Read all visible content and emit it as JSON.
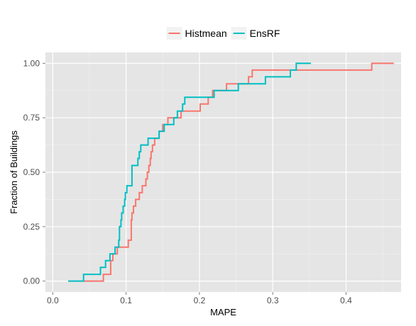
{
  "chart_data": {
    "type": "line",
    "step": true,
    "xlabel": "MAPE",
    "ylabel": "Fraction of Buildings",
    "xlim": [
      -0.01,
      0.475
    ],
    "ylim": [
      -0.05,
      1.05
    ],
    "xticks": [
      0.0,
      0.1,
      0.2,
      0.3,
      0.4
    ],
    "xtick_labels": [
      "0.0",
      "0.1",
      "0.2",
      "0.3",
      "0.4"
    ],
    "yticks": [
      0.0,
      0.25,
      0.5,
      0.75,
      1.0
    ],
    "ytick_labels": [
      "0.00",
      "0.25",
      "0.50",
      "0.75",
      "1.00"
    ],
    "grid": true,
    "legend_position": "top",
    "series": [
      {
        "name": "Histmean",
        "color": "#F8766D",
        "x": [
          0.042,
          0.069,
          0.079,
          0.082,
          0.088,
          0.103,
          0.107,
          0.108,
          0.11,
          0.113,
          0.118,
          0.122,
          0.127,
          0.129,
          0.131,
          0.133,
          0.134,
          0.136,
          0.139,
          0.145,
          0.15,
          0.157,
          0.168,
          0.175,
          0.184,
          0.193,
          0.201,
          0.212,
          0.218,
          0.227,
          0.237,
          0.258,
          0.267,
          0.272,
          0.297,
          0.435,
          0.465
        ],
        "y": [
          0.0,
          0.031,
          0.094,
          0.125,
          0.156,
          0.188,
          0.281,
          0.313,
          0.344,
          0.375,
          0.406,
          0.438,
          0.469,
          0.5,
          0.531,
          0.563,
          0.594,
          0.625,
          0.656,
          0.688,
          0.719,
          0.75,
          0.75,
          0.781,
          0.781,
          0.781,
          0.813,
          0.844,
          0.875,
          0.875,
          0.906,
          0.906,
          0.938,
          0.969,
          0.969,
          1.0,
          1.0
        ]
      },
      {
        "name": "EnsRF",
        "color": "#00BFC4",
        "x": [
          0.021,
          0.042,
          0.065,
          0.072,
          0.078,
          0.085,
          0.09,
          0.091,
          0.093,
          0.094,
          0.096,
          0.098,
          0.099,
          0.101,
          0.108,
          0.116,
          0.118,
          0.12,
          0.13,
          0.14,
          0.145,
          0.152,
          0.165,
          0.17,
          0.175,
          0.177,
          0.178,
          0.18,
          0.22,
          0.228,
          0.253,
          0.29,
          0.324,
          0.332,
          0.352
        ],
        "y": [
          0.0,
          0.031,
          0.063,
          0.094,
          0.125,
          0.156,
          0.188,
          0.25,
          0.281,
          0.313,
          0.344,
          0.375,
          0.406,
          0.438,
          0.531,
          0.563,
          0.594,
          0.625,
          0.656,
          0.656,
          0.688,
          0.719,
          0.75,
          0.781,
          0.781,
          0.813,
          0.813,
          0.844,
          0.875,
          0.875,
          0.906,
          0.938,
          0.969,
          1.0,
          1.0
        ]
      }
    ]
  }
}
